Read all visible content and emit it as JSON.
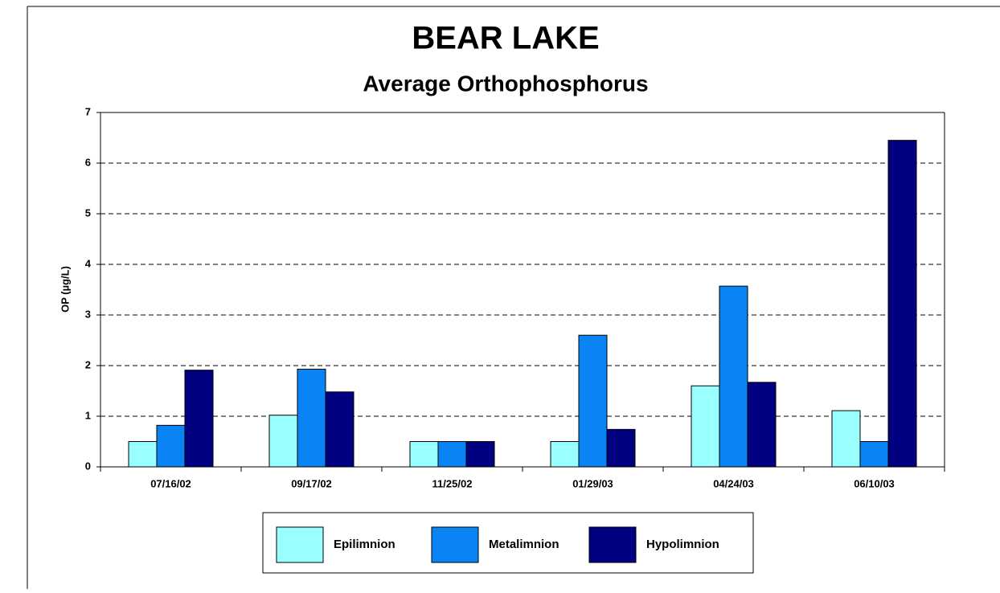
{
  "chart_data": {
    "type": "bar",
    "title": "BEAR LAKE",
    "subtitle": "Average Orthophosphorus",
    "y_label": "OP (µg/L)",
    "categories": [
      "07/16/02",
      "09/17/02",
      "11/25/02",
      "01/29/03",
      "04/24/03",
      "06/10/03"
    ],
    "series": [
      {
        "name": "Epilimnion",
        "color": "#99ffff",
        "values": [
          0.5,
          1.02,
          0.5,
          0.5,
          1.6,
          1.11
        ]
      },
      {
        "name": "Metalimnion",
        "color": "#0a84f5",
        "values": [
          0.82,
          1.93,
          0.5,
          2.6,
          3.57,
          0.5
        ]
      },
      {
        "name": "Hypolimnion",
        "color": "#000080",
        "values": [
          1.91,
          1.48,
          0.5,
          0.74,
          1.67,
          6.45
        ]
      }
    ],
    "ylim": [
      0,
      7
    ],
    "yticks": [
      0,
      1,
      2,
      3,
      4,
      5,
      6,
      7
    ],
    "grid": true,
    "legend": "bottom"
  }
}
